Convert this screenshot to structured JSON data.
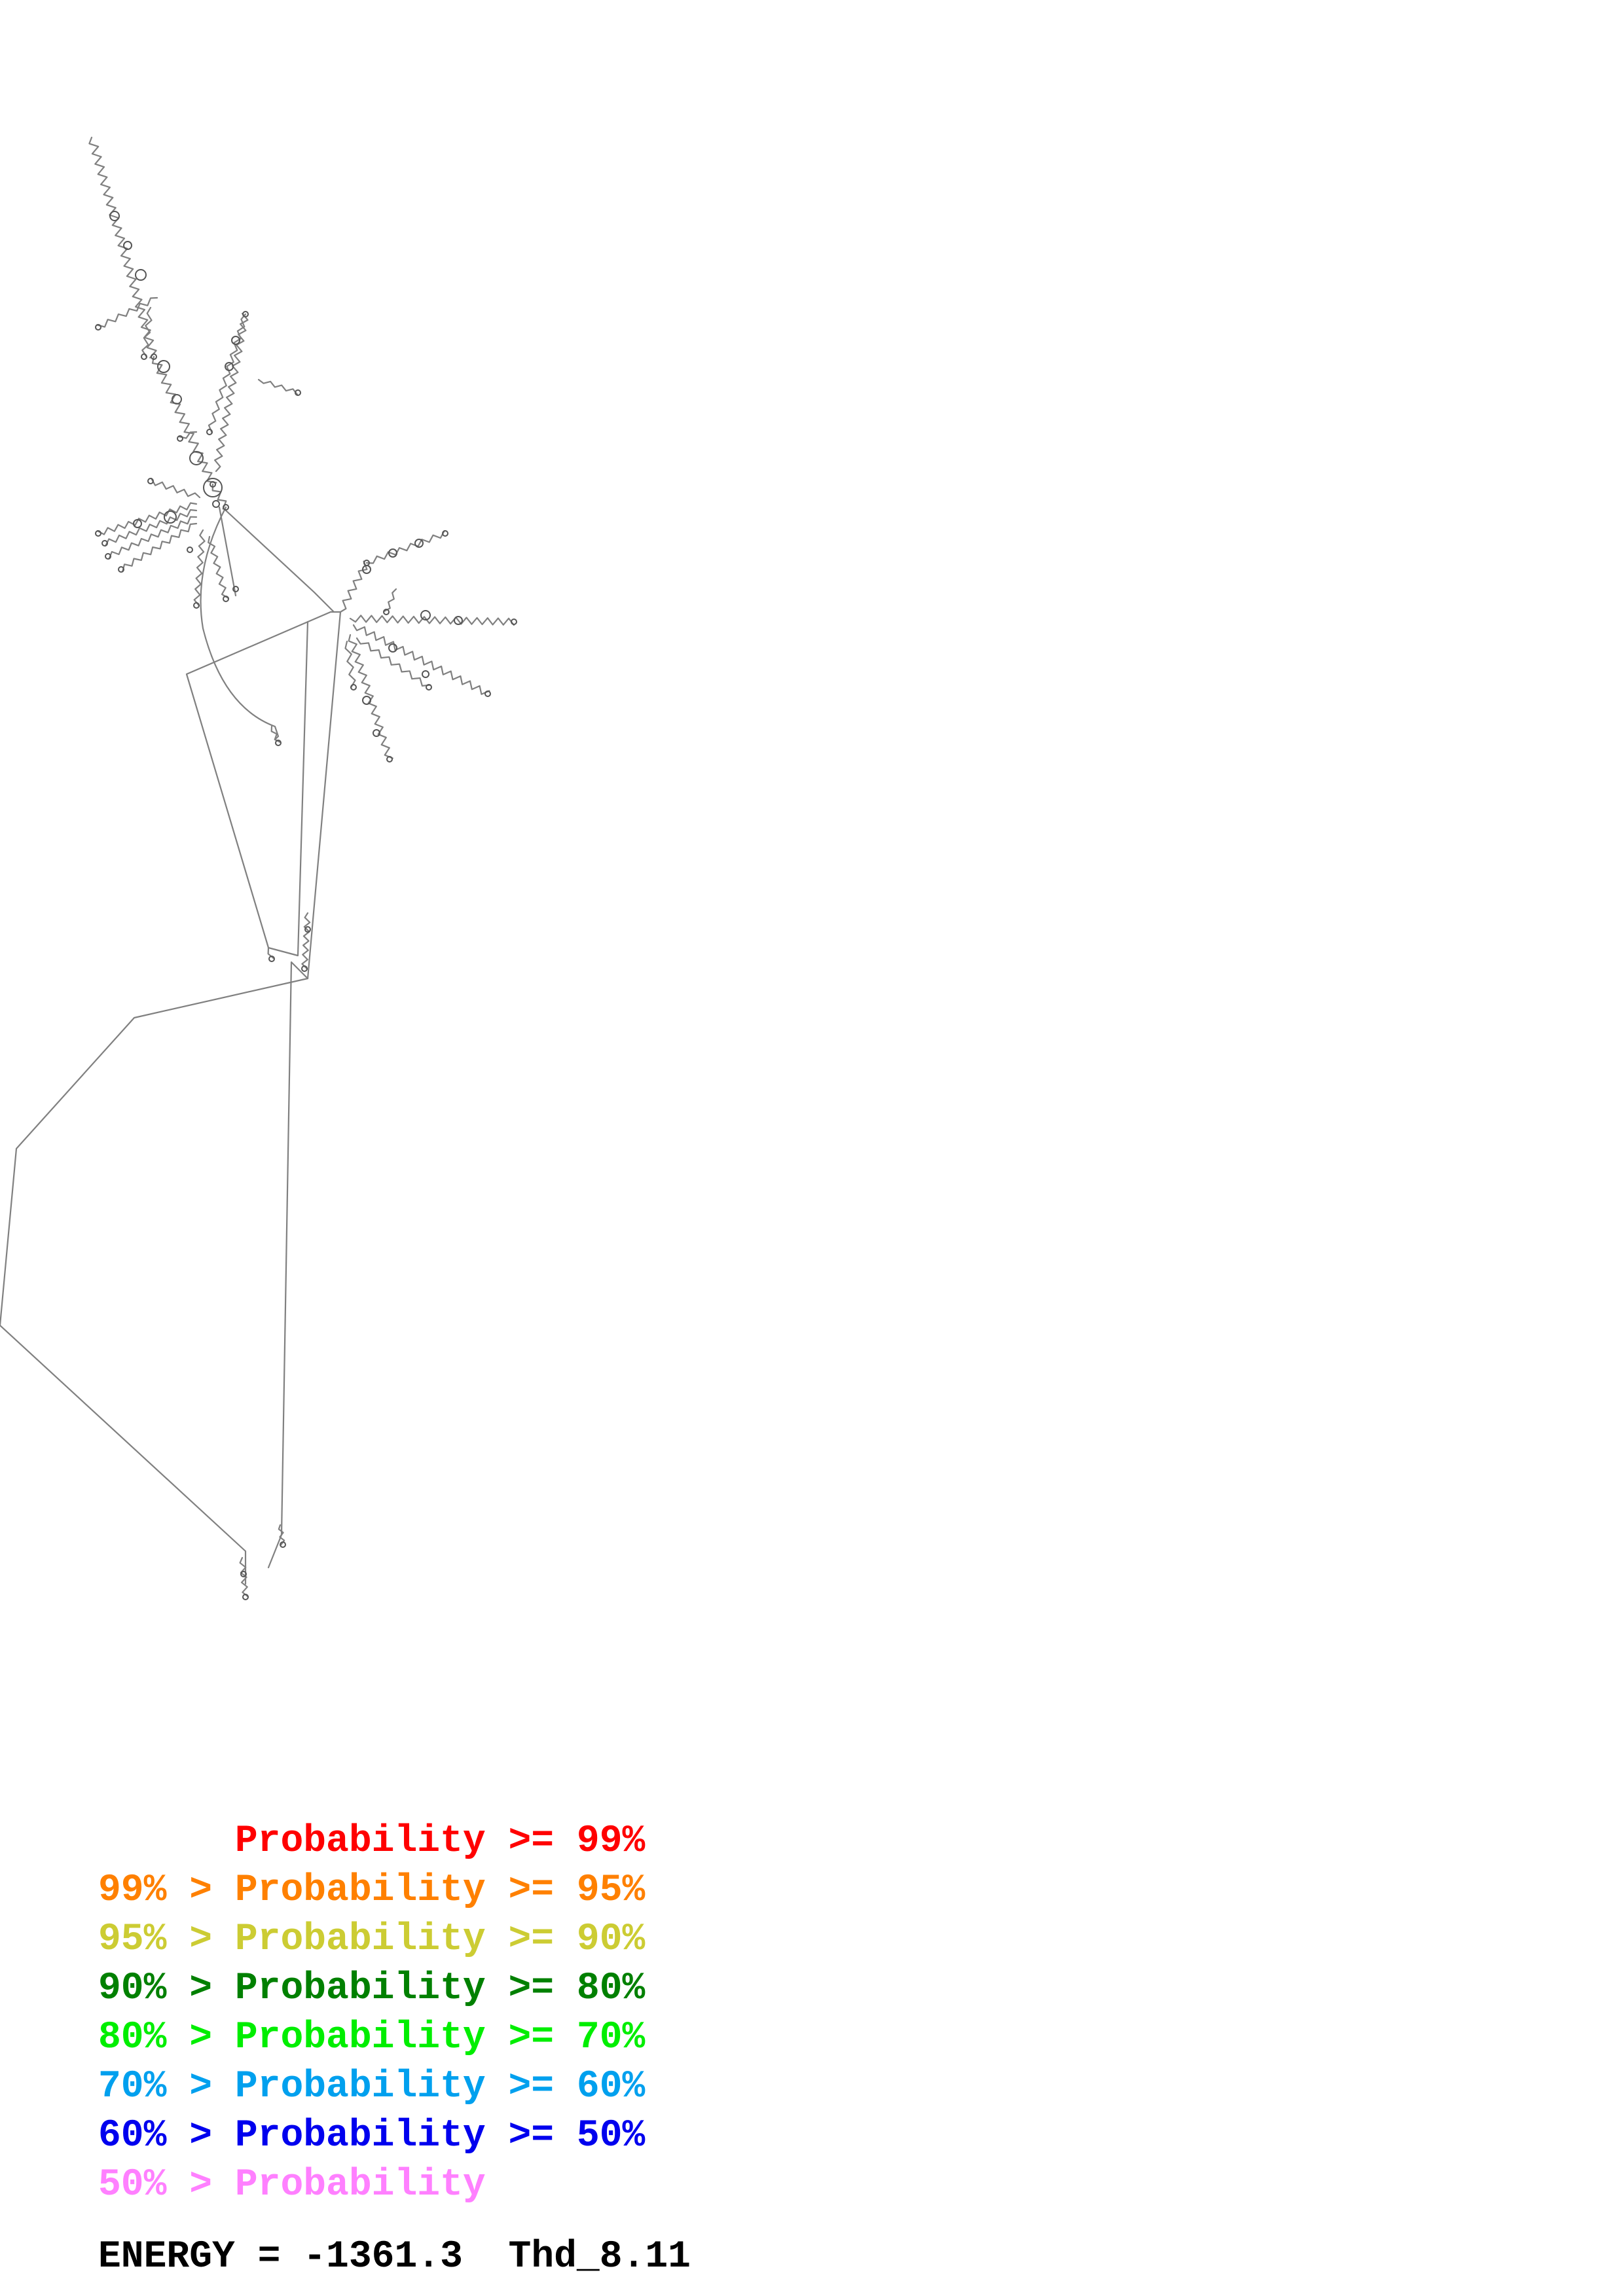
{
  "legend": [
    {
      "text": "      Probability >= 99%",
      "color": "#ff0000"
    },
    {
      "text": "99% > Probability >= 95%",
      "color": "#ff8000"
    },
    {
      "text": "95% > Probability >= 90%",
      "color": "#cccc33"
    },
    {
      "text": "90% > Probability >= 80%",
      "color": "#008000"
    },
    {
      "text": "80% > Probability >= 70%",
      "color": "#00ee00"
    },
    {
      "text": "70% > Probability >= 60%",
      "color": "#00a0ee"
    },
    {
      "text": "60% > Probability >= 50%",
      "color": "#0000ee"
    },
    {
      "text": "50% > Probability",
      "color": "#ff80ff"
    }
  ],
  "energy_label": "ENERGY = -1361.3",
  "structure_name": "Thd_8.11",
  "structure_color": "#808080"
}
